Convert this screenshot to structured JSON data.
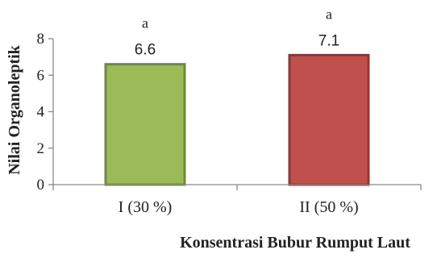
{
  "chart_data": {
    "type": "bar",
    "categories": [
      "I (30 %)",
      "II (50 %)"
    ],
    "values": [
      6.6,
      7.1
    ],
    "data_labels": [
      "6.6",
      "7.1"
    ],
    "significance_labels": [
      "a",
      "a"
    ],
    "bar_colors": [
      "#9bbb59",
      "#c0504d"
    ],
    "bar_border_colors": [
      "#71893f",
      "#8c3836"
    ],
    "xlabel": "Konsentrasi Bubur Rumput Laut",
    "ylabel": "Nilai Organoleptik",
    "ylim": [
      0,
      8
    ],
    "yticks": [
      "0",
      "2",
      "4",
      "6",
      "8"
    ],
    "grid": false,
    "legend": "none"
  }
}
